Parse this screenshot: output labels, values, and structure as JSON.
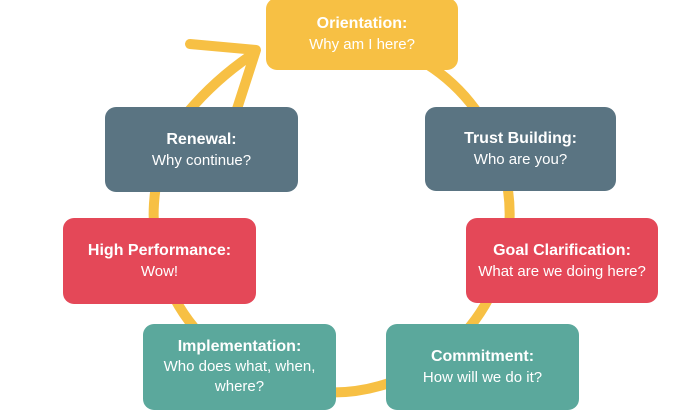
{
  "diagram": {
    "colors": {
      "yellow": "#F7C044",
      "slate": "#5A7482",
      "red": "#E44858",
      "teal": "#5BA89C",
      "ring": "#F7C044"
    },
    "stages": [
      {
        "id": "orientation",
        "title": "Orientation:",
        "subtitle": "Why am I here?",
        "color": "yellow"
      },
      {
        "id": "trust",
        "title": "Trust Building:",
        "subtitle": "Who are you?",
        "color": "slate"
      },
      {
        "id": "goal",
        "title": "Goal Clarification:",
        "subtitle": "What are we doing here?",
        "color": "red"
      },
      {
        "id": "commitment",
        "title": "Commitment:",
        "subtitle": "How will we do it?",
        "color": "teal"
      },
      {
        "id": "implementation",
        "title": "Implementation:",
        "subtitle": "Who does what, when, where?",
        "color": "teal"
      },
      {
        "id": "performance",
        "title": "High Performance:",
        "subtitle": "Wow!",
        "color": "red"
      },
      {
        "id": "renewal",
        "title": "Renewal:",
        "subtitle": "Why continue?",
        "color": "slate"
      }
    ]
  }
}
